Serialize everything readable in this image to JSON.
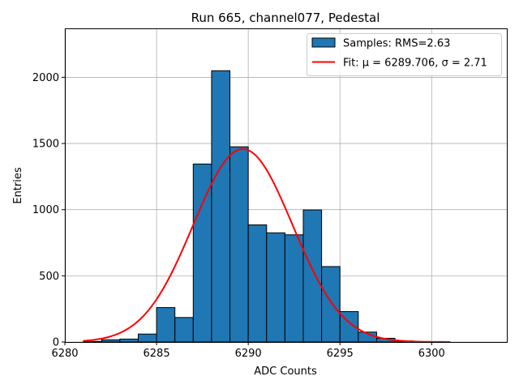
{
  "chart_data": {
    "type": "bar",
    "title": "Run 665, channel077, Pedestal",
    "xlabel": "ADC Counts",
    "ylabel": "Entries",
    "xlim": [
      6280,
      6304.1
    ],
    "ylim": [
      0,
      2370
    ],
    "xticks": [
      6280,
      6285,
      6290,
      6295,
      6300
    ],
    "yticks": [
      0,
      500,
      1000,
      1500,
      2000
    ],
    "grid": true,
    "legend_position": "top-right",
    "bin_edges": [
      6281,
      6282,
      6283,
      6284,
      6285,
      6286,
      6287,
      6288,
      6289,
      6290,
      6291,
      6292,
      6293,
      6294,
      6295,
      6296,
      6297,
      6298,
      6299,
      6300,
      6301,
      6302,
      6303
    ],
    "counts": [
      4,
      17,
      22,
      60,
      260,
      185,
      1345,
      2050,
      1475,
      885,
      825,
      810,
      998,
      570,
      230,
      75,
      28,
      8,
      2,
      1,
      0,
      0
    ],
    "fit": {
      "mu": 6289.706,
      "sigma": 2.71,
      "amplitude": 1458,
      "x_range": [
        6281,
        6301
      ]
    },
    "series": [
      {
        "name": "Samples: RMS=2.63",
        "kind": "histogram",
        "color": "#1f77b4",
        "edge_color": "#000000"
      },
      {
        "name": "Fit: μ = 6289.706, σ = 2.71",
        "kind": "line",
        "color": "#ff0000"
      }
    ]
  }
}
